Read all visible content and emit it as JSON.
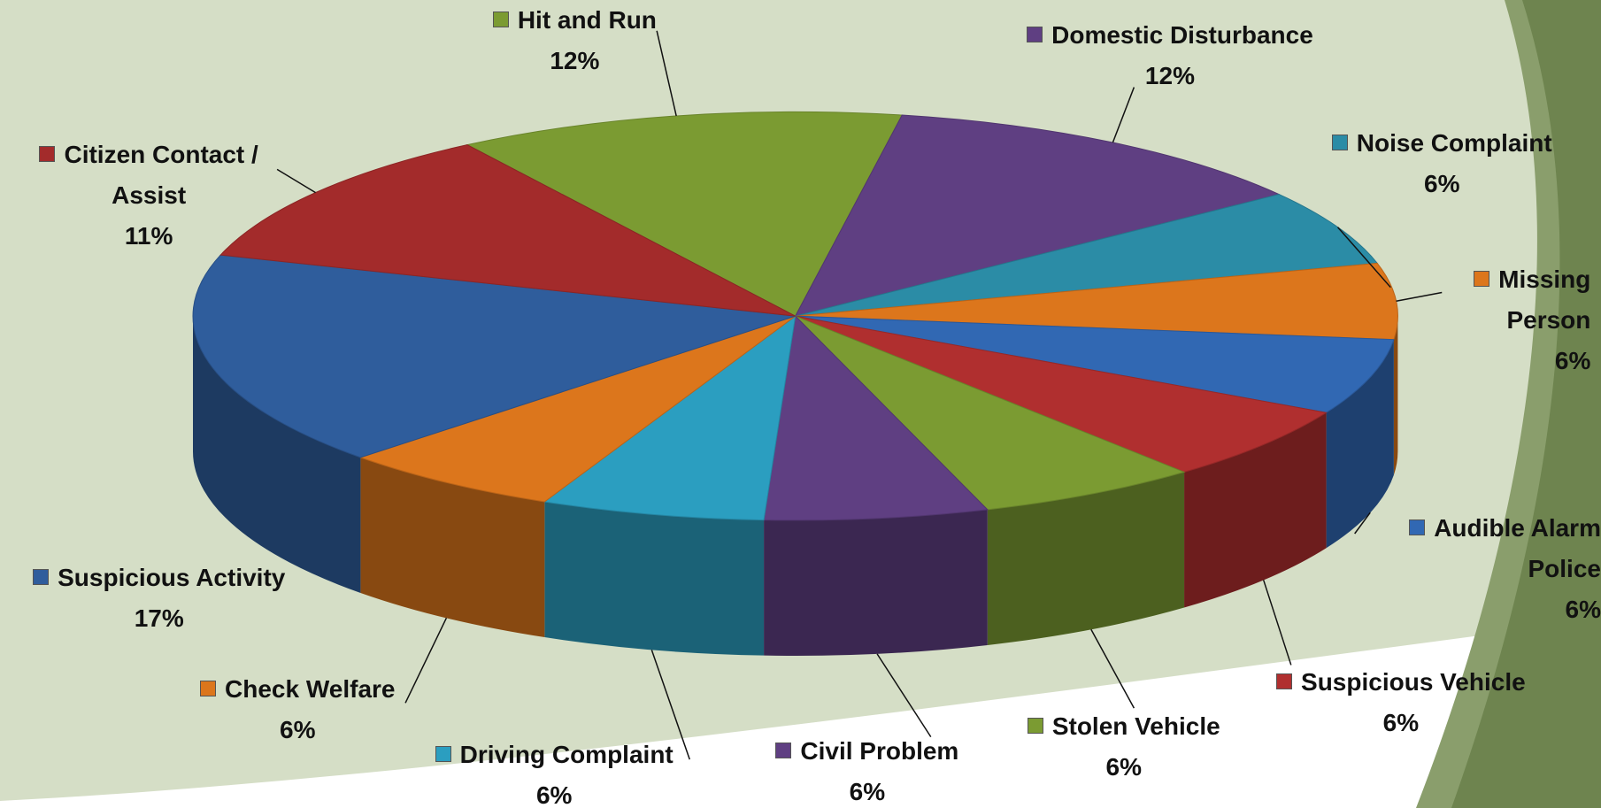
{
  "chart_data": {
    "type": "pie3d",
    "categories": [
      "Hit and Run",
      "Domestic Disturbance",
      "Noise Complaint",
      "Missing Person",
      "Audible Alarm Police",
      "Suspicious Vehicle",
      "Stolen Vehicle",
      "Civil Problem",
      "Driving Complaint",
      "Check Welfare",
      "Suspicious Activity",
      "Citizen Contact / Assist"
    ],
    "values": [
      12,
      12,
      6,
      6,
      6,
      6,
      6,
      6,
      6,
      6,
      17,
      11
    ],
    "value_labels": [
      "12%",
      "12%",
      "6%",
      "6%",
      "6%",
      "6%",
      "6%",
      "6%",
      "6%",
      "6%",
      "17%",
      "11%"
    ],
    "colors": [
      "#7b9b32",
      "#5f3f82",
      "#2b8ca6",
      "#dc761c",
      "#3168b3",
      "#b02f2f",
      "#7b9b32",
      "#5f3f82",
      "#2b9ec0",
      "#dc761c",
      "#2f5d9c",
      "#a32b2b"
    ]
  }
}
